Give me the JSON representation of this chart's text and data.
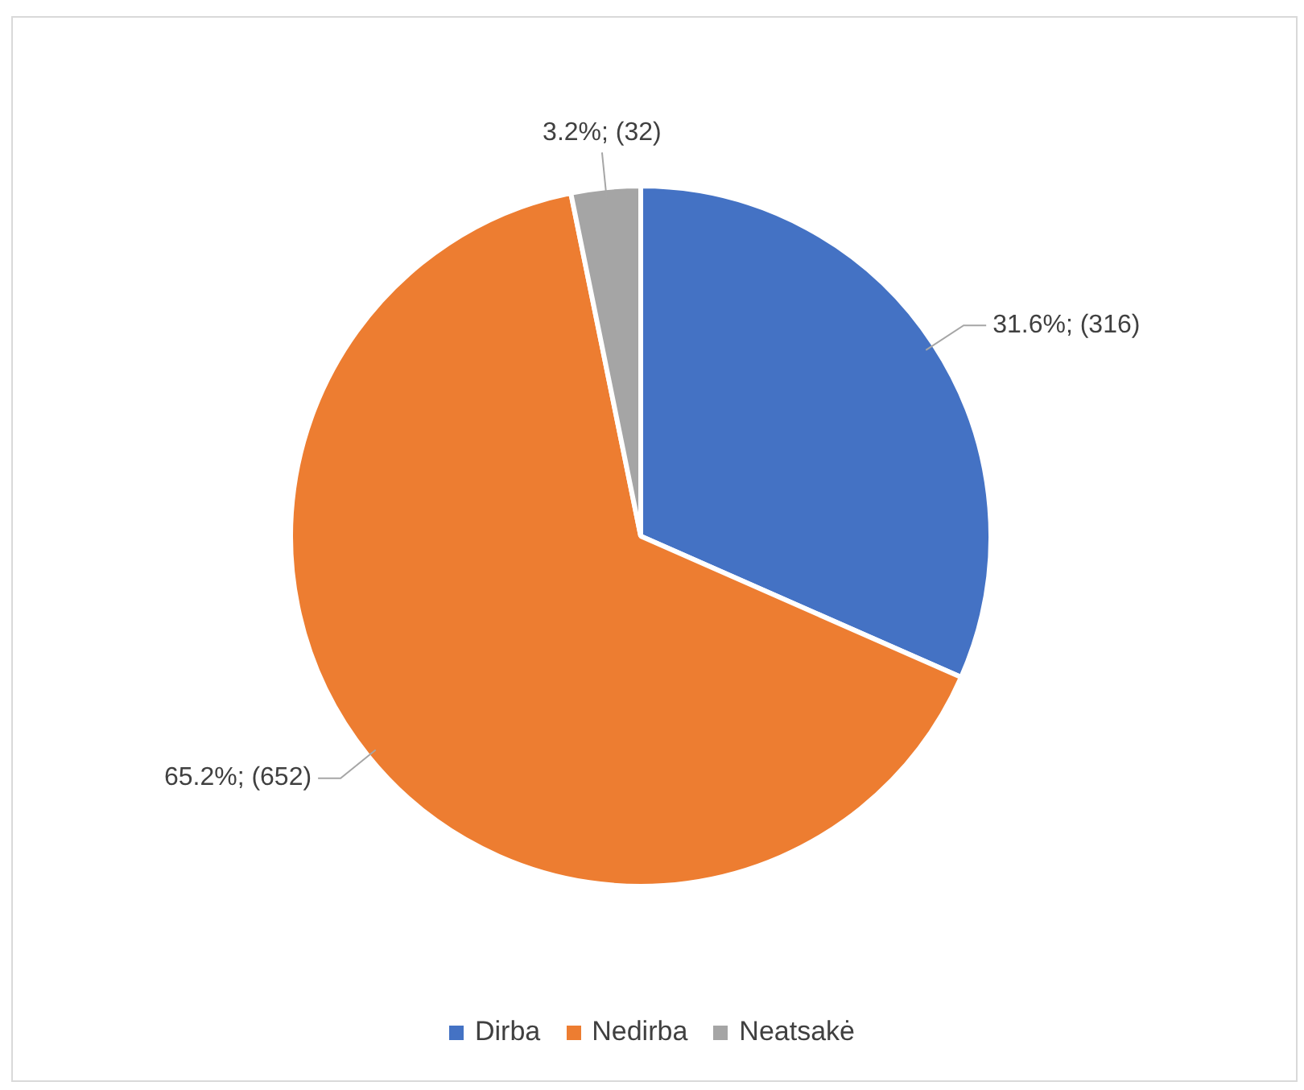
{
  "chart_data": {
    "type": "pie",
    "categories": [
      "Dirba",
      "Nedirba",
      "Neatsakė"
    ],
    "values": [
      316,
      652,
      32
    ],
    "colors": [
      "#4472c4",
      "#ed7d31",
      "#a5a5a5"
    ],
    "value_labels": [
      "31.6%; (316)",
      "65.2%; (652)",
      "3.2%; (32)"
    ],
    "legend": "bottom"
  }
}
